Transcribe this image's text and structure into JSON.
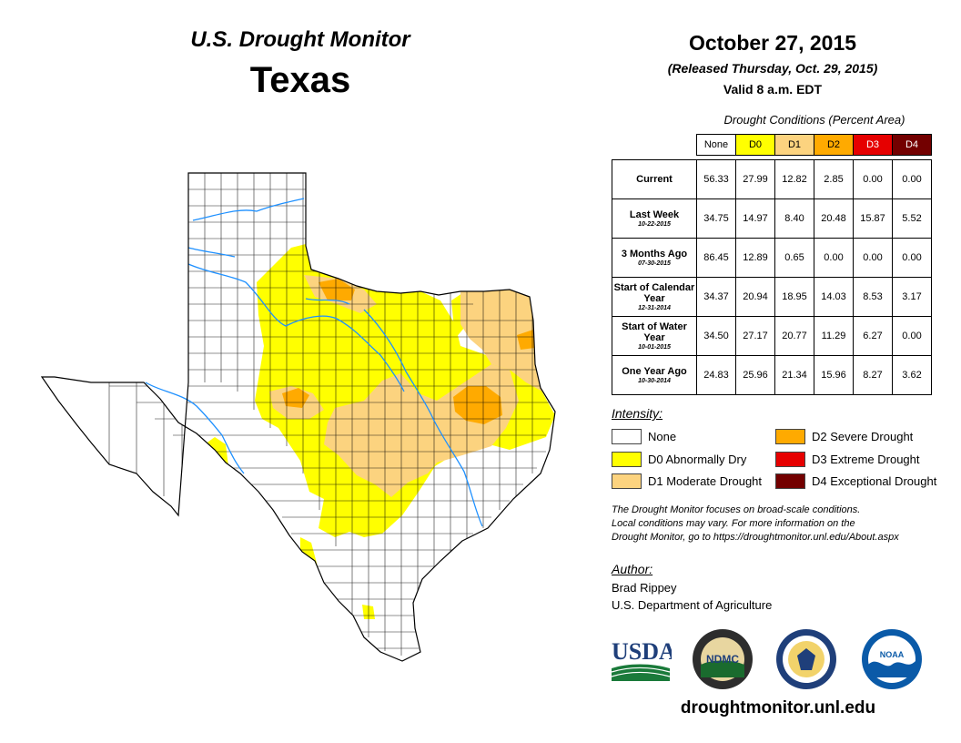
{
  "header": {
    "subtitle": "U.S. Drought Monitor",
    "state": "Texas",
    "date": "October 27, 2015",
    "released": "(Released Thursday, Oct. 29, 2015)",
    "valid": "Valid 8 a.m. EDT"
  },
  "table": {
    "caption": "Drought Conditions (Percent Area)",
    "columns": [
      "None",
      "D0",
      "D1",
      "D2",
      "D3",
      "D4"
    ],
    "rows": [
      {
        "label": "Current",
        "date": "",
        "values": [
          "56.33",
          "27.99",
          "12.82",
          "2.85",
          "0.00",
          "0.00"
        ]
      },
      {
        "label": "Last Week",
        "date": "10-22-2015",
        "values": [
          "34.75",
          "14.97",
          "8.40",
          "20.48",
          "15.87",
          "5.52"
        ]
      },
      {
        "label": "3 Months Ago",
        "date": "07-30-2015",
        "values": [
          "86.45",
          "12.89",
          "0.65",
          "0.00",
          "0.00",
          "0.00"
        ]
      },
      {
        "label": "Start of Calendar Year",
        "date": "12-31-2014",
        "values": [
          "34.37",
          "20.94",
          "18.95",
          "14.03",
          "8.53",
          "3.17"
        ]
      },
      {
        "label": "Start of Water Year",
        "date": "10-01-2015",
        "values": [
          "34.50",
          "27.17",
          "20.77",
          "11.29",
          "6.27",
          "0.00"
        ]
      },
      {
        "label": "One Year Ago",
        "date": "10-30-2014",
        "values": [
          "24.83",
          "25.96",
          "21.34",
          "15.96",
          "8.27",
          "3.62"
        ]
      }
    ]
  },
  "legend": {
    "title": "Intensity:",
    "items": [
      {
        "label": "None",
        "color": "#ffffff"
      },
      {
        "label": "D0 Abnormally Dry",
        "color": "#ffff00"
      },
      {
        "label": "D1 Moderate Drought",
        "color": "#fcd37f"
      },
      {
        "label": "D2 Severe Drought",
        "color": "#ffaa00"
      },
      {
        "label": "D3 Extreme Drought",
        "color": "#e60000"
      },
      {
        "label": "D4 Exceptional Drought",
        "color": "#730000"
      }
    ]
  },
  "note": {
    "line1": "The Drought Monitor focuses on broad-scale conditions.",
    "line2": "Local conditions may vary. For more information on the",
    "line3": "Drought Monitor, go to https://droughtmonitor.unl.edu/About.aspx"
  },
  "author": {
    "title": "Author:",
    "name": "Brad Rippey",
    "org": "U.S. Department of Agriculture"
  },
  "logos": {
    "usda": "USDA",
    "ndmc": "NDMC",
    "noaa": "NOAA"
  },
  "url": "droughtmonitor.unl.edu",
  "colors": {
    "none": "#ffffff",
    "d0": "#ffff00",
    "d1": "#fcd37f",
    "d2": "#ffaa00",
    "d3": "#e60000",
    "d4": "#730000",
    "river": "#1e90ff"
  }
}
